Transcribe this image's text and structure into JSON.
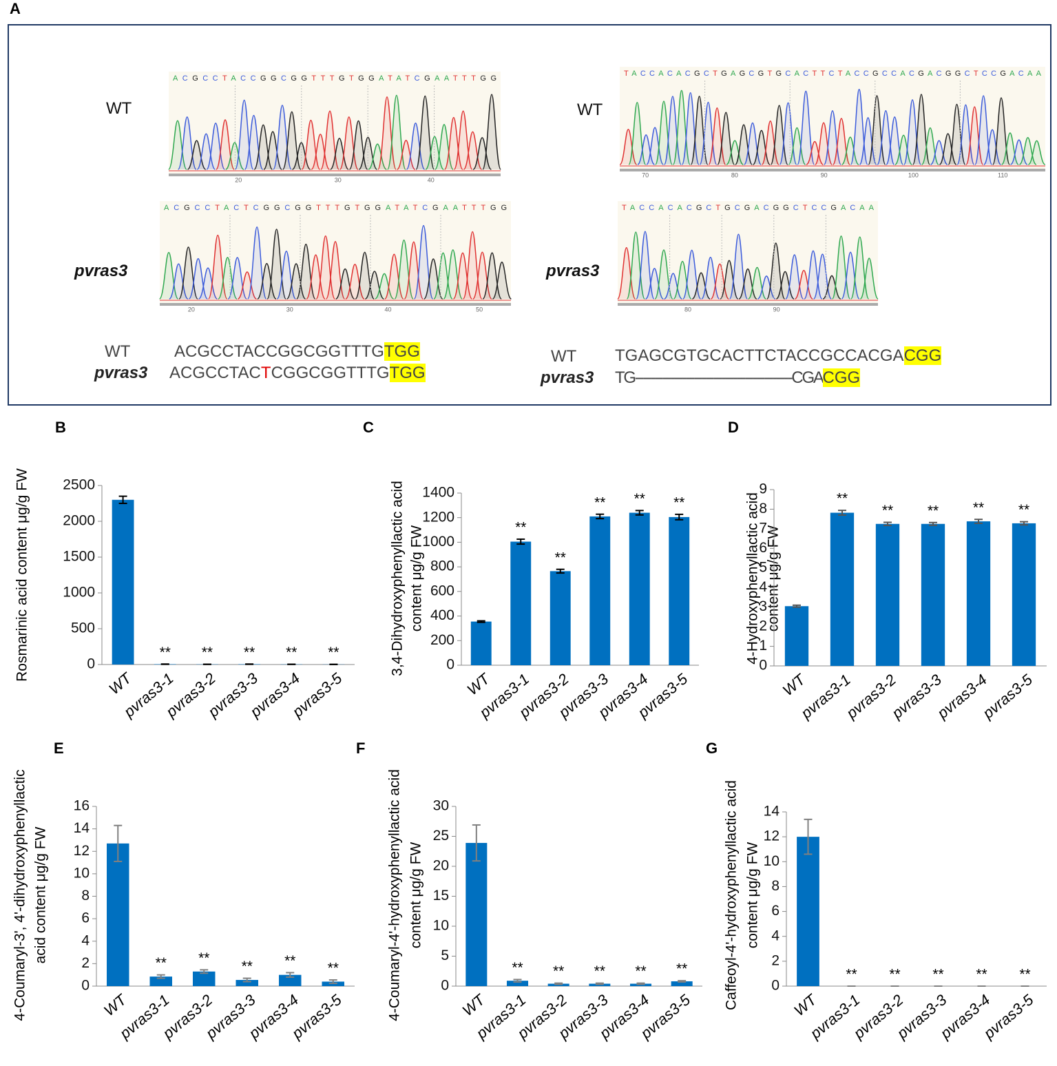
{
  "panel_a": {
    "label": "A",
    "left": {
      "wt_label": "WT",
      "mut_label": "pvras3",
      "wt_seq": "ACGCCTACCGGCGGTTTGTGGATATCGAATTTGG",
      "wt_ticks": [
        20,
        30,
        40
      ],
      "mut_seq": "ACGCCTACTCGGCGGTTTGTGGATATCGAATTTGG",
      "mut_ticks": [
        20,
        30,
        40,
        50
      ]
    },
    "right": {
      "wt_label": "WT",
      "mut_label": "pvras3",
      "wt_seq": "TACCACACGCTGAGCGTGCACTTCTACCGCCACGACGGCTCCGACAA",
      "wt_ticks": [
        70,
        80,
        90,
        100,
        110
      ],
      "mut_seq": "TACCACACGCTGCGACGGCTCCGACAA",
      "mut_ticks": [
        80,
        90
      ]
    },
    "alignment_left": [
      {
        "label": "WT",
        "parts": [
          "ACGCCTACCGGCGGTTTG",
          "TGG"
        ]
      },
      {
        "label": "pvras3",
        "parts": [
          "ACGCCTAC",
          "T",
          "CGGCGGTTTG",
          "TGG"
        ]
      }
    ],
    "alignment_right": [
      {
        "label": "WT",
        "parts": [
          "TGAGCGTGCACTTCTACCGCCACGA",
          "CGG"
        ]
      },
      {
        "label": "pvras3",
        "parts": [
          "TG----------------------------------------CGA",
          "CGG"
        ]
      }
    ]
  },
  "chart_data": [
    {
      "type": "bar",
      "label": "B",
      "ylabel": [
        "Rosmarinic acid content μg/g FW"
      ],
      "categories": [
        "WT",
        "pvras3-1",
        "pvras3-2",
        "pvras3-3",
        "pvras3-4",
        "pvras3-5"
      ],
      "values": [
        2300,
        5,
        3,
        5,
        3,
        2
      ],
      "errors": [
        50,
        2,
        1,
        2,
        1,
        1
      ],
      "significance": [
        null,
        "**",
        "**",
        "**",
        "**",
        "**"
      ],
      "color": "#0070c0",
      "error_color": "#000000",
      "ylim": [
        0,
        2500
      ],
      "yticks": [
        0,
        500,
        1000,
        1500,
        2000,
        2500
      ]
    },
    {
      "type": "bar",
      "label": "C",
      "ylabel": [
        "3,4-Dihydroxyphenyllactic acid",
        "content μg/g FW"
      ],
      "categories": [
        "WT",
        "pvras3-1",
        "pvras3-2",
        "pvras3-3",
        "pvras3-4",
        "pvras3-5"
      ],
      "values": [
        355,
        1005,
        765,
        1210,
        1240,
        1205
      ],
      "errors": [
        6,
        20,
        15,
        18,
        18,
        22
      ],
      "significance": [
        null,
        "**",
        "**",
        "**",
        "**",
        "**"
      ],
      "color": "#0070c0",
      "error_color": "#000000",
      "ylim": [
        0,
        1400
      ],
      "yticks": [
        0,
        200,
        400,
        600,
        800,
        1000,
        1200,
        1400
      ]
    },
    {
      "type": "bar",
      "label": "D",
      "ylabel": [
        "4-Hydroxyphenyllactic acid",
        "content μg/g FW"
      ],
      "categories": [
        "WT",
        "pvras3-1",
        "pvras3-2",
        "pvras3-3",
        "pvras3-4",
        "pvras3-5"
      ],
      "values": [
        3.05,
        7.82,
        7.25,
        7.25,
        7.38,
        7.28
      ],
      "errors": [
        0.05,
        0.12,
        0.08,
        0.07,
        0.1,
        0.08
      ],
      "significance": [
        null,
        "**",
        "**",
        "**",
        "**",
        "**"
      ],
      "color": "#0070c0",
      "error_color": "#555555",
      "ylim": [
        0,
        9
      ],
      "yticks": [
        0,
        1,
        2,
        3,
        4,
        5,
        6,
        7,
        8,
        9
      ]
    },
    {
      "type": "bar",
      "label": "E",
      "ylabel": [
        "4-Coumaryl-3', 4'-dihydroxyphenyllactic",
        "acid content μg/g FW"
      ],
      "categories": [
        "WT",
        "pvras3-1",
        "pvras3-2",
        "pvras3-3",
        "pvras3-4",
        "pvras3-5"
      ],
      "values": [
        12.7,
        0.85,
        1.3,
        0.55,
        1.0,
        0.4
      ],
      "errors": [
        1.6,
        0.15,
        0.15,
        0.15,
        0.2,
        0.15
      ],
      "significance": [
        null,
        "**",
        "**",
        "**",
        "**",
        "**"
      ],
      "color": "#0070c0",
      "error_color": "#808080",
      "ylim": [
        0,
        16
      ],
      "yticks": [
        0,
        2,
        4,
        6,
        8,
        10,
        12,
        14,
        16
      ]
    },
    {
      "type": "bar",
      "label": "F",
      "ylabel": [
        "4-Coumaryl-4'-hydroxyphenyllactic acid",
        "content μg/g FW"
      ],
      "categories": [
        "WT",
        "pvras3-1",
        "pvras3-2",
        "pvras3-3",
        "pvras3-4",
        "pvras3-5"
      ],
      "values": [
        23.9,
        0.9,
        0.4,
        0.4,
        0.4,
        0.8
      ],
      "errors": [
        3,
        0.2,
        0.1,
        0.1,
        0.1,
        0.1
      ],
      "significance": [
        null,
        "**",
        "**",
        "**",
        "**",
        "**"
      ],
      "color": "#0070c0",
      "error_color": "#808080",
      "ylim": [
        0,
        30
      ],
      "yticks": [
        0,
        5,
        10,
        15,
        20,
        25,
        30
      ]
    },
    {
      "type": "bar",
      "label": "G",
      "ylabel": [
        "Caffeoyl-4'-hydroxyphenyllactic acid",
        "content μg/g FW"
      ],
      "categories": [
        "WT",
        "pvras3-1",
        "pvras3-2",
        "pvras3-3",
        "pvras3-4",
        "pvras3-5"
      ],
      "values": [
        12,
        0,
        0,
        0,
        0,
        0
      ],
      "errors": [
        1.4,
        0,
        0,
        0,
        0,
        0
      ],
      "significance": [
        null,
        "**",
        "**",
        "**",
        "**",
        "**"
      ],
      "color": "#0070c0",
      "error_color": "#808080",
      "ylim": [
        0,
        14
      ],
      "yticks": [
        0,
        2,
        4,
        6,
        8,
        10,
        12,
        14
      ]
    }
  ]
}
